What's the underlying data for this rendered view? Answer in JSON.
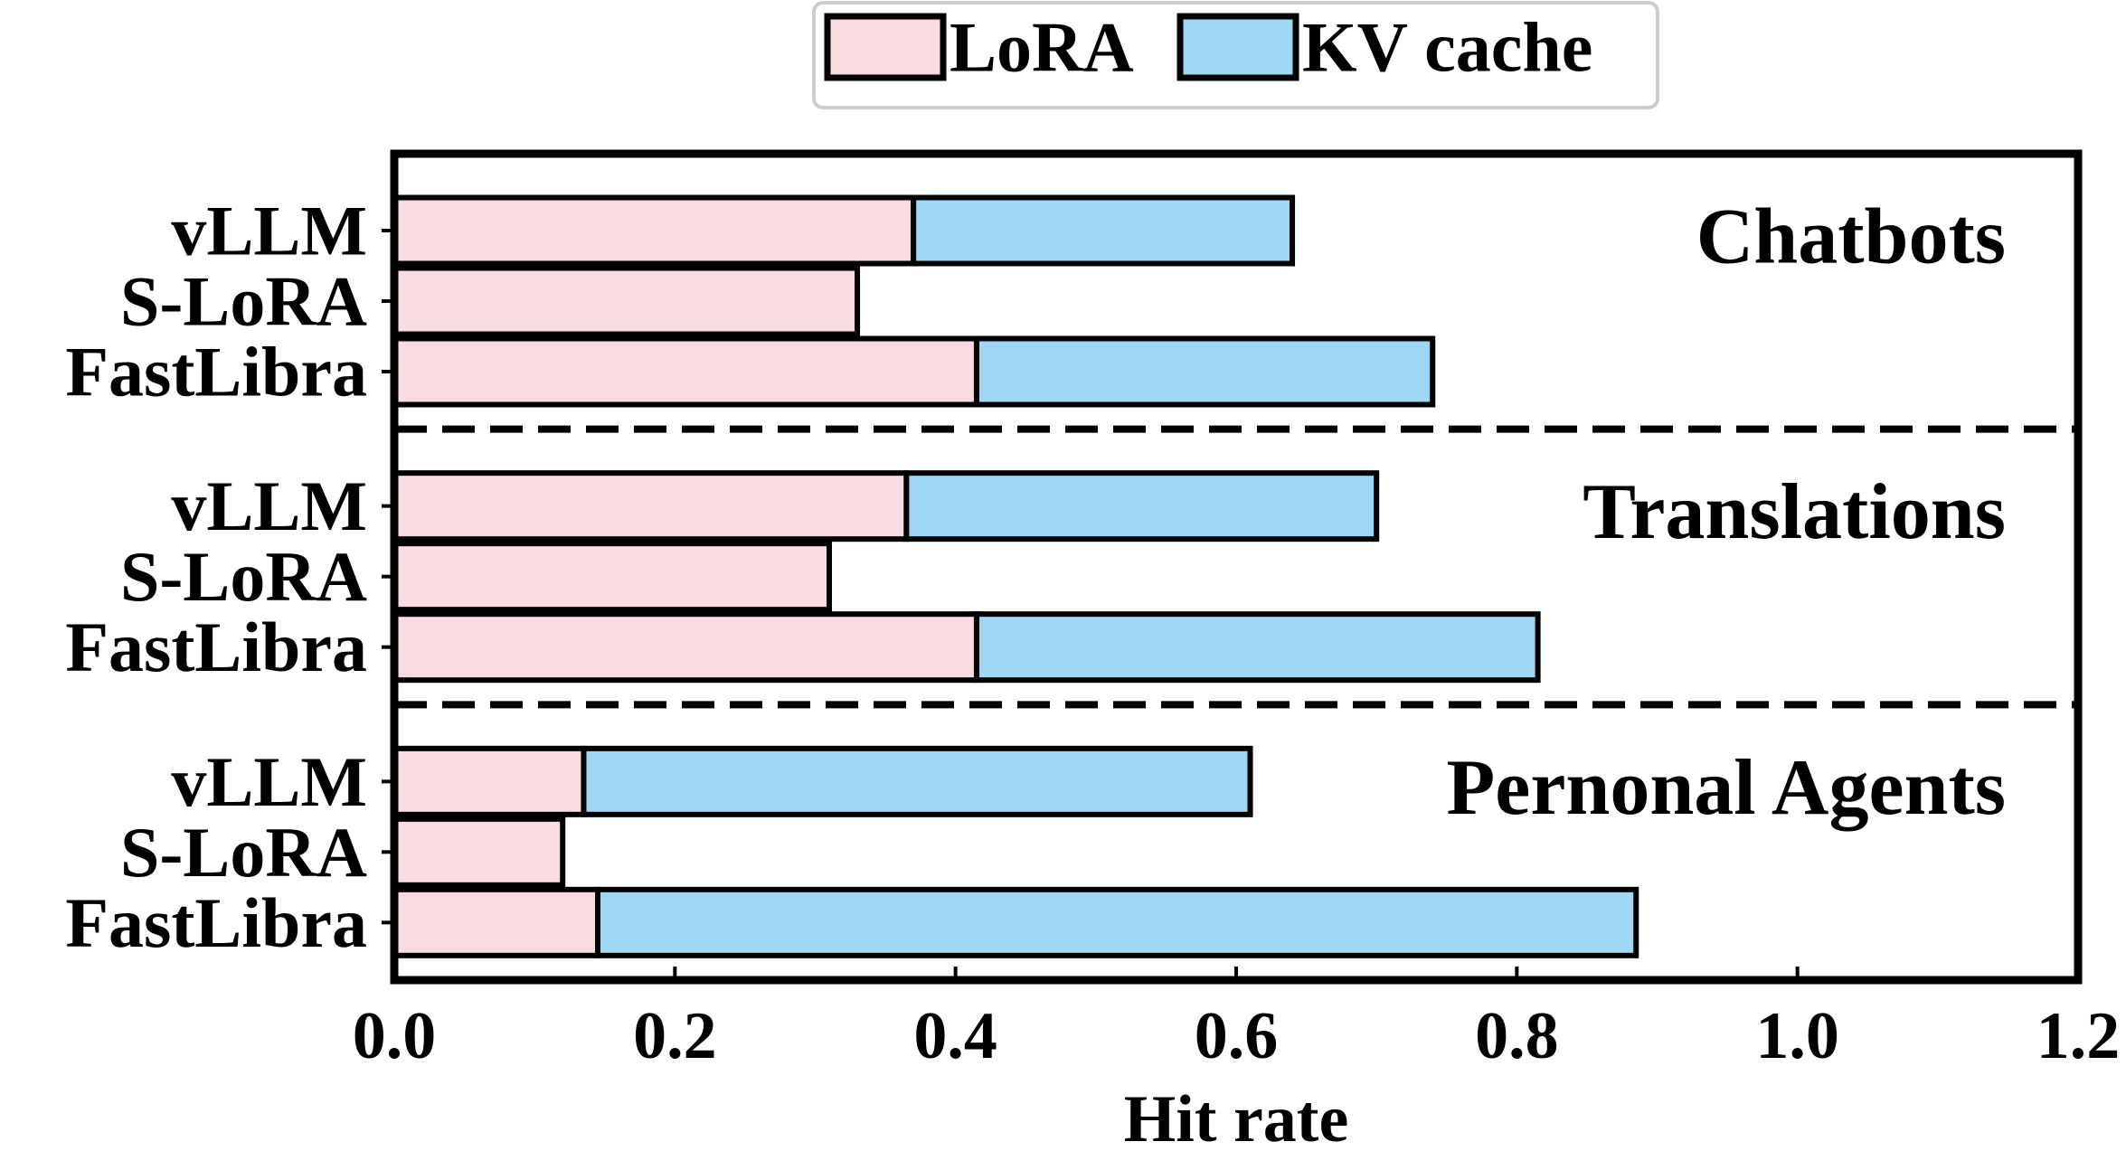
{
  "chart_data": {
    "type": "bar",
    "orientation": "horizontal",
    "stacked": true,
    "xlabel": "Hit rate",
    "ylabel": "",
    "xlim": [
      0.0,
      1.2
    ],
    "xticks": [
      "0.0",
      "0.2",
      "0.4",
      "0.6",
      "0.8",
      "1.0",
      "1.2"
    ],
    "legend": {
      "placement": "top-center",
      "entries": [
        {
          "label": "LoRA",
          "color": "#f9dcdf"
        },
        {
          "label": "KV cache",
          "color": "#9fd6f3"
        }
      ]
    },
    "groups": [
      {
        "name": "Chatbots",
        "systems": [
          {
            "name": "vLLM",
            "lora": 0.37,
            "kv": 0.27
          },
          {
            "name": "S-LoRA",
            "lora": 0.33,
            "kv": 0.0
          },
          {
            "name": "FastLibra",
            "lora": 0.415,
            "kv": 0.325
          }
        ]
      },
      {
        "name": "Translations",
        "systems": [
          {
            "name": "vLLM",
            "lora": 0.365,
            "kv": 0.335
          },
          {
            "name": "S-LoRA",
            "lora": 0.31,
            "kv": 0.0
          },
          {
            "name": "FastLibra",
            "lora": 0.415,
            "kv": 0.4
          }
        ]
      },
      {
        "name": "Pernonal Agents",
        "systems": [
          {
            "name": "vLLM",
            "lora": 0.135,
            "kv": 0.475
          },
          {
            "name": "S-LoRA",
            "lora": 0.12,
            "kv": 0.0
          },
          {
            "name": "FastLibra",
            "lora": 0.145,
            "kv": 0.74
          }
        ]
      }
    ]
  }
}
